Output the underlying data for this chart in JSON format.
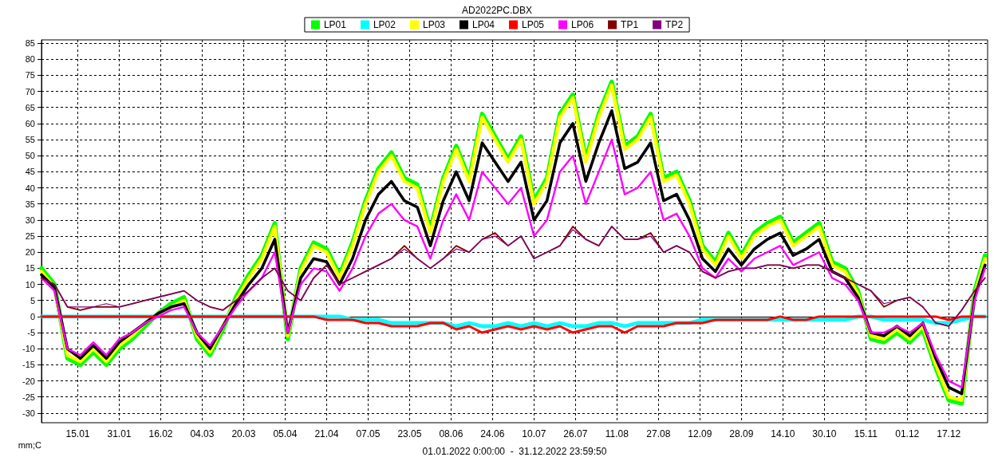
{
  "chart_data": {
    "type": "line",
    "title": "AD2022PC.DBX",
    "xlabel": "01.01.2022 0:00:00  -  31.12.2022 23:59:50",
    "ylabel": "mm;C",
    "x": [
      "2022-01-01",
      "2022-01-06",
      "2022-01-11",
      "2022-01-16",
      "2022-01-21",
      "2022-01-26",
      "2022-01-31",
      "2022-02-05",
      "2022-02-10",
      "2022-02-15",
      "2022-02-20",
      "2022-02-25",
      "2022-03-02",
      "2022-03-07",
      "2022-03-12",
      "2022-03-17",
      "2022-03-22",
      "2022-03-27",
      "2022-04-01",
      "2022-04-06",
      "2022-04-11",
      "2022-04-16",
      "2022-04-21",
      "2022-04-26",
      "2022-05-01",
      "2022-05-06",
      "2022-05-11",
      "2022-05-16",
      "2022-05-21",
      "2022-05-26",
      "2022-05-31",
      "2022-06-05",
      "2022-06-10",
      "2022-06-15",
      "2022-06-20",
      "2022-06-25",
      "2022-06-30",
      "2022-07-05",
      "2022-07-10",
      "2022-07-15",
      "2022-07-20",
      "2022-07-25",
      "2022-07-30",
      "2022-08-04",
      "2022-08-09",
      "2022-08-14",
      "2022-08-19",
      "2022-08-24",
      "2022-08-29",
      "2022-09-03",
      "2022-09-08",
      "2022-09-13",
      "2022-09-18",
      "2022-09-23",
      "2022-09-28",
      "2022-10-03",
      "2022-10-08",
      "2022-10-13",
      "2022-10-18",
      "2022-10-23",
      "2022-10-28",
      "2022-11-02",
      "2022-11-07",
      "2022-11-12",
      "2022-11-17",
      "2022-11-22",
      "2022-11-27",
      "2022-12-02",
      "2022-12-07",
      "2022-12-12",
      "2022-12-17",
      "2022-12-22",
      "2022-12-27",
      "2022-12-31"
    ],
    "series": [
      {
        "name": "LP01",
        "color": "#00ff00",
        "values": [
          15,
          10,
          -13,
          -15,
          -11,
          -15,
          -10,
          -7,
          -3,
          1,
          4,
          6,
          -7,
          -12,
          -4,
          6,
          13,
          19,
          29,
          -7,
          15,
          23,
          21,
          13,
          23,
          36,
          46,
          51,
          43,
          41,
          27,
          43,
          53,
          43,
          63,
          56,
          49,
          56,
          36,
          43,
          63,
          69,
          49,
          63,
          73,
          53,
          56,
          63,
          43,
          45,
          36,
          22,
          17,
          26,
          19,
          26,
          29,
          31,
          23,
          26,
          29,
          17,
          15,
          8,
          -7,
          -8,
          -5,
          -8,
          -4,
          -16,
          -26,
          -27,
          8,
          19
        ]
      },
      {
        "name": "LP02",
        "color": "#00ffff",
        "values": [
          0,
          0,
          0,
          0,
          0,
          0,
          0,
          0,
          0,
          0,
          0,
          0,
          0,
          0,
          0,
          0,
          0,
          0,
          0,
          0,
          0,
          0,
          0,
          0,
          -1,
          -1,
          -1,
          -2,
          -2,
          -2,
          -2,
          -2,
          -3,
          -2,
          -3,
          -3,
          -2,
          -3,
          -2,
          -3,
          -2,
          -3,
          -3,
          -2,
          -2,
          -3,
          -2,
          -2,
          -2,
          -2,
          -2,
          -1,
          -1,
          -1,
          -1,
          -1,
          -1,
          -1,
          -1,
          -1,
          -1,
          -1,
          -1,
          0,
          0,
          -1,
          -1,
          -1,
          -1,
          -2,
          -2,
          -1,
          0,
          0
        ]
      },
      {
        "name": "LP03",
        "color": "#ffff00",
        "values": [
          14,
          9,
          -12,
          -14,
          -10,
          -14,
          -9,
          -6,
          -2,
          1,
          3,
          5,
          -6,
          -11,
          -3,
          5,
          12,
          18,
          28,
          -6,
          14,
          22,
          20,
          12,
          22,
          35,
          45,
          50,
          42,
          40,
          26,
          42,
          52,
          42,
          62,
          55,
          48,
          55,
          35,
          42,
          62,
          68,
          48,
          62,
          72,
          52,
          55,
          62,
          42,
          44,
          35,
          21,
          16,
          25,
          18,
          25,
          28,
          30,
          22,
          25,
          28,
          16,
          14,
          7,
          -6,
          -7,
          -4,
          -7,
          -3,
          -15,
          -25,
          -26,
          7,
          18
        ]
      },
      {
        "name": "LP04",
        "color": "#000000",
        "values": [
          13,
          9,
          -10,
          -13,
          -9,
          -13,
          -8,
          -5,
          -2,
          1,
          3,
          4,
          -5,
          -10,
          -3,
          4,
          10,
          15,
          24,
          -5,
          12,
          18,
          17,
          10,
          18,
          30,
          38,
          42,
          36,
          34,
          22,
          36,
          45,
          36,
          54,
          48,
          42,
          48,
          30,
          36,
          54,
          60,
          42,
          54,
          64,
          46,
          48,
          54,
          36,
          38,
          30,
          18,
          14,
          21,
          16,
          21,
          24,
          26,
          19,
          21,
          24,
          14,
          12,
          6,
          -5,
          -6,
          -3,
          -6,
          -2,
          -13,
          -22,
          -24,
          6,
          16
        ]
      },
      {
        "name": "LP05",
        "color": "#ff0000",
        "values": [
          0,
          0,
          0,
          0,
          0,
          0,
          0,
          0,
          0,
          0,
          0,
          0,
          0,
          0,
          0,
          0,
          0,
          0,
          0,
          0,
          0,
          0,
          -1,
          -1,
          -1,
          -2,
          -2,
          -3,
          -3,
          -3,
          -2,
          -2,
          -4,
          -3,
          -5,
          -4,
          -3,
          -4,
          -3,
          -4,
          -3,
          -5,
          -4,
          -3,
          -3,
          -5,
          -3,
          -3,
          -3,
          -2,
          -2,
          -2,
          -1,
          -1,
          -1,
          -1,
          -1,
          0,
          -1,
          -1,
          0,
          0,
          0,
          0,
          0,
          0,
          0,
          0,
          0,
          0,
          -1,
          0,
          0,
          0
        ]
      },
      {
        "name": "LP06",
        "color": "#ff00ff",
        "values": [
          12,
          8,
          -10,
          -12,
          -8,
          -12,
          -7,
          -5,
          -2,
          0,
          2,
          3,
          -5,
          -9,
          -3,
          3,
          8,
          12,
          20,
          -5,
          10,
          15,
          14,
          8,
          15,
          25,
          32,
          35,
          30,
          28,
          18,
          30,
          38,
          30,
          45,
          40,
          35,
          40,
          25,
          30,
          45,
          50,
          35,
          45,
          55,
          38,
          40,
          45,
          30,
          32,
          25,
          15,
          12,
          18,
          14,
          18,
          20,
          22,
          16,
          18,
          20,
          12,
          10,
          5,
          -5,
          -5,
          -3,
          -5,
          -2,
          -12,
          -20,
          -22,
          5,
          15
        ]
      },
      {
        "name": "TP1",
        "color": "#800000",
        "values": [
          12,
          10,
          3,
          2,
          3,
          3,
          3,
          4,
          5,
          6,
          7,
          8,
          5,
          3,
          2,
          5,
          8,
          12,
          15,
          8,
          5,
          12,
          16,
          10,
          12,
          14,
          16,
          18,
          22,
          18,
          15,
          18,
          22,
          20,
          24,
          26,
          22,
          25,
          18,
          20,
          22,
          28,
          24,
          22,
          28,
          24,
          24,
          26,
          20,
          22,
          20,
          14,
          12,
          14,
          15,
          15,
          16,
          16,
          15,
          16,
          16,
          14,
          12,
          10,
          8,
          3,
          5,
          6,
          3,
          -2,
          -3,
          2,
          8,
          12
        ]
      },
      {
        "name": "TP2",
        "color": "#800080",
        "values": [
          12,
          10,
          3,
          3,
          3,
          4,
          3,
          4,
          5,
          6,
          7,
          8,
          5,
          3,
          2,
          5,
          8,
          12,
          15,
          8,
          5,
          12,
          16,
          10,
          12,
          14,
          16,
          18,
          21,
          18,
          15,
          18,
          21,
          20,
          24,
          25,
          22,
          25,
          18,
          20,
          22,
          27,
          24,
          22,
          28,
          24,
          24,
          25,
          20,
          22,
          20,
          14,
          12,
          14,
          15,
          15,
          16,
          16,
          15,
          16,
          16,
          14,
          12,
          10,
          8,
          4,
          5,
          6,
          3,
          -2,
          -3,
          2,
          8,
          12
        ]
      }
    ],
    "xlim": [
      "2022-01-01",
      "2022-12-31T23:59"
    ],
    "xticks": [
      {
        "value": "2022-01-15",
        "label": "15.01"
      },
      {
        "value": "2022-01-31",
        "label": "31.01"
      },
      {
        "value": "2022-02-16",
        "label": "16.02"
      },
      {
        "value": "2022-03-04",
        "label": "04.03"
      },
      {
        "value": "2022-03-20",
        "label": "20.03"
      },
      {
        "value": "2022-04-05",
        "label": "05.04"
      },
      {
        "value": "2022-04-21",
        "label": "21.04"
      },
      {
        "value": "2022-05-07",
        "label": "07.05"
      },
      {
        "value": "2022-05-23",
        "label": "23.05"
      },
      {
        "value": "2022-06-08",
        "label": "08.06"
      },
      {
        "value": "2022-06-24",
        "label": "24.06"
      },
      {
        "value": "2022-07-10",
        "label": "10.07"
      },
      {
        "value": "2022-07-26",
        "label": "26.07"
      },
      {
        "value": "2022-08-11",
        "label": "11.08"
      },
      {
        "value": "2022-08-27",
        "label": "27.08"
      },
      {
        "value": "2022-09-12",
        "label": "12.09"
      },
      {
        "value": "2022-09-28",
        "label": "28.09"
      },
      {
        "value": "2022-10-14",
        "label": "14.10"
      },
      {
        "value": "2022-10-30",
        "label": "30.10"
      },
      {
        "value": "2022-11-15",
        "label": "15.11"
      },
      {
        "value": "2022-12-01",
        "label": "01.12"
      },
      {
        "value": "2022-12-17",
        "label": "17.12"
      }
    ],
    "ylim": [
      -33,
      86
    ],
    "yticks": [
      -30,
      -25,
      -20,
      -15,
      -10,
      -5,
      0,
      5,
      10,
      15,
      20,
      25,
      30,
      35,
      40,
      45,
      50,
      55,
      60,
      65,
      70,
      75,
      80,
      85
    ],
    "grid": true,
    "legend": "top",
    "marker": "none",
    "line_style": "solid"
  }
}
